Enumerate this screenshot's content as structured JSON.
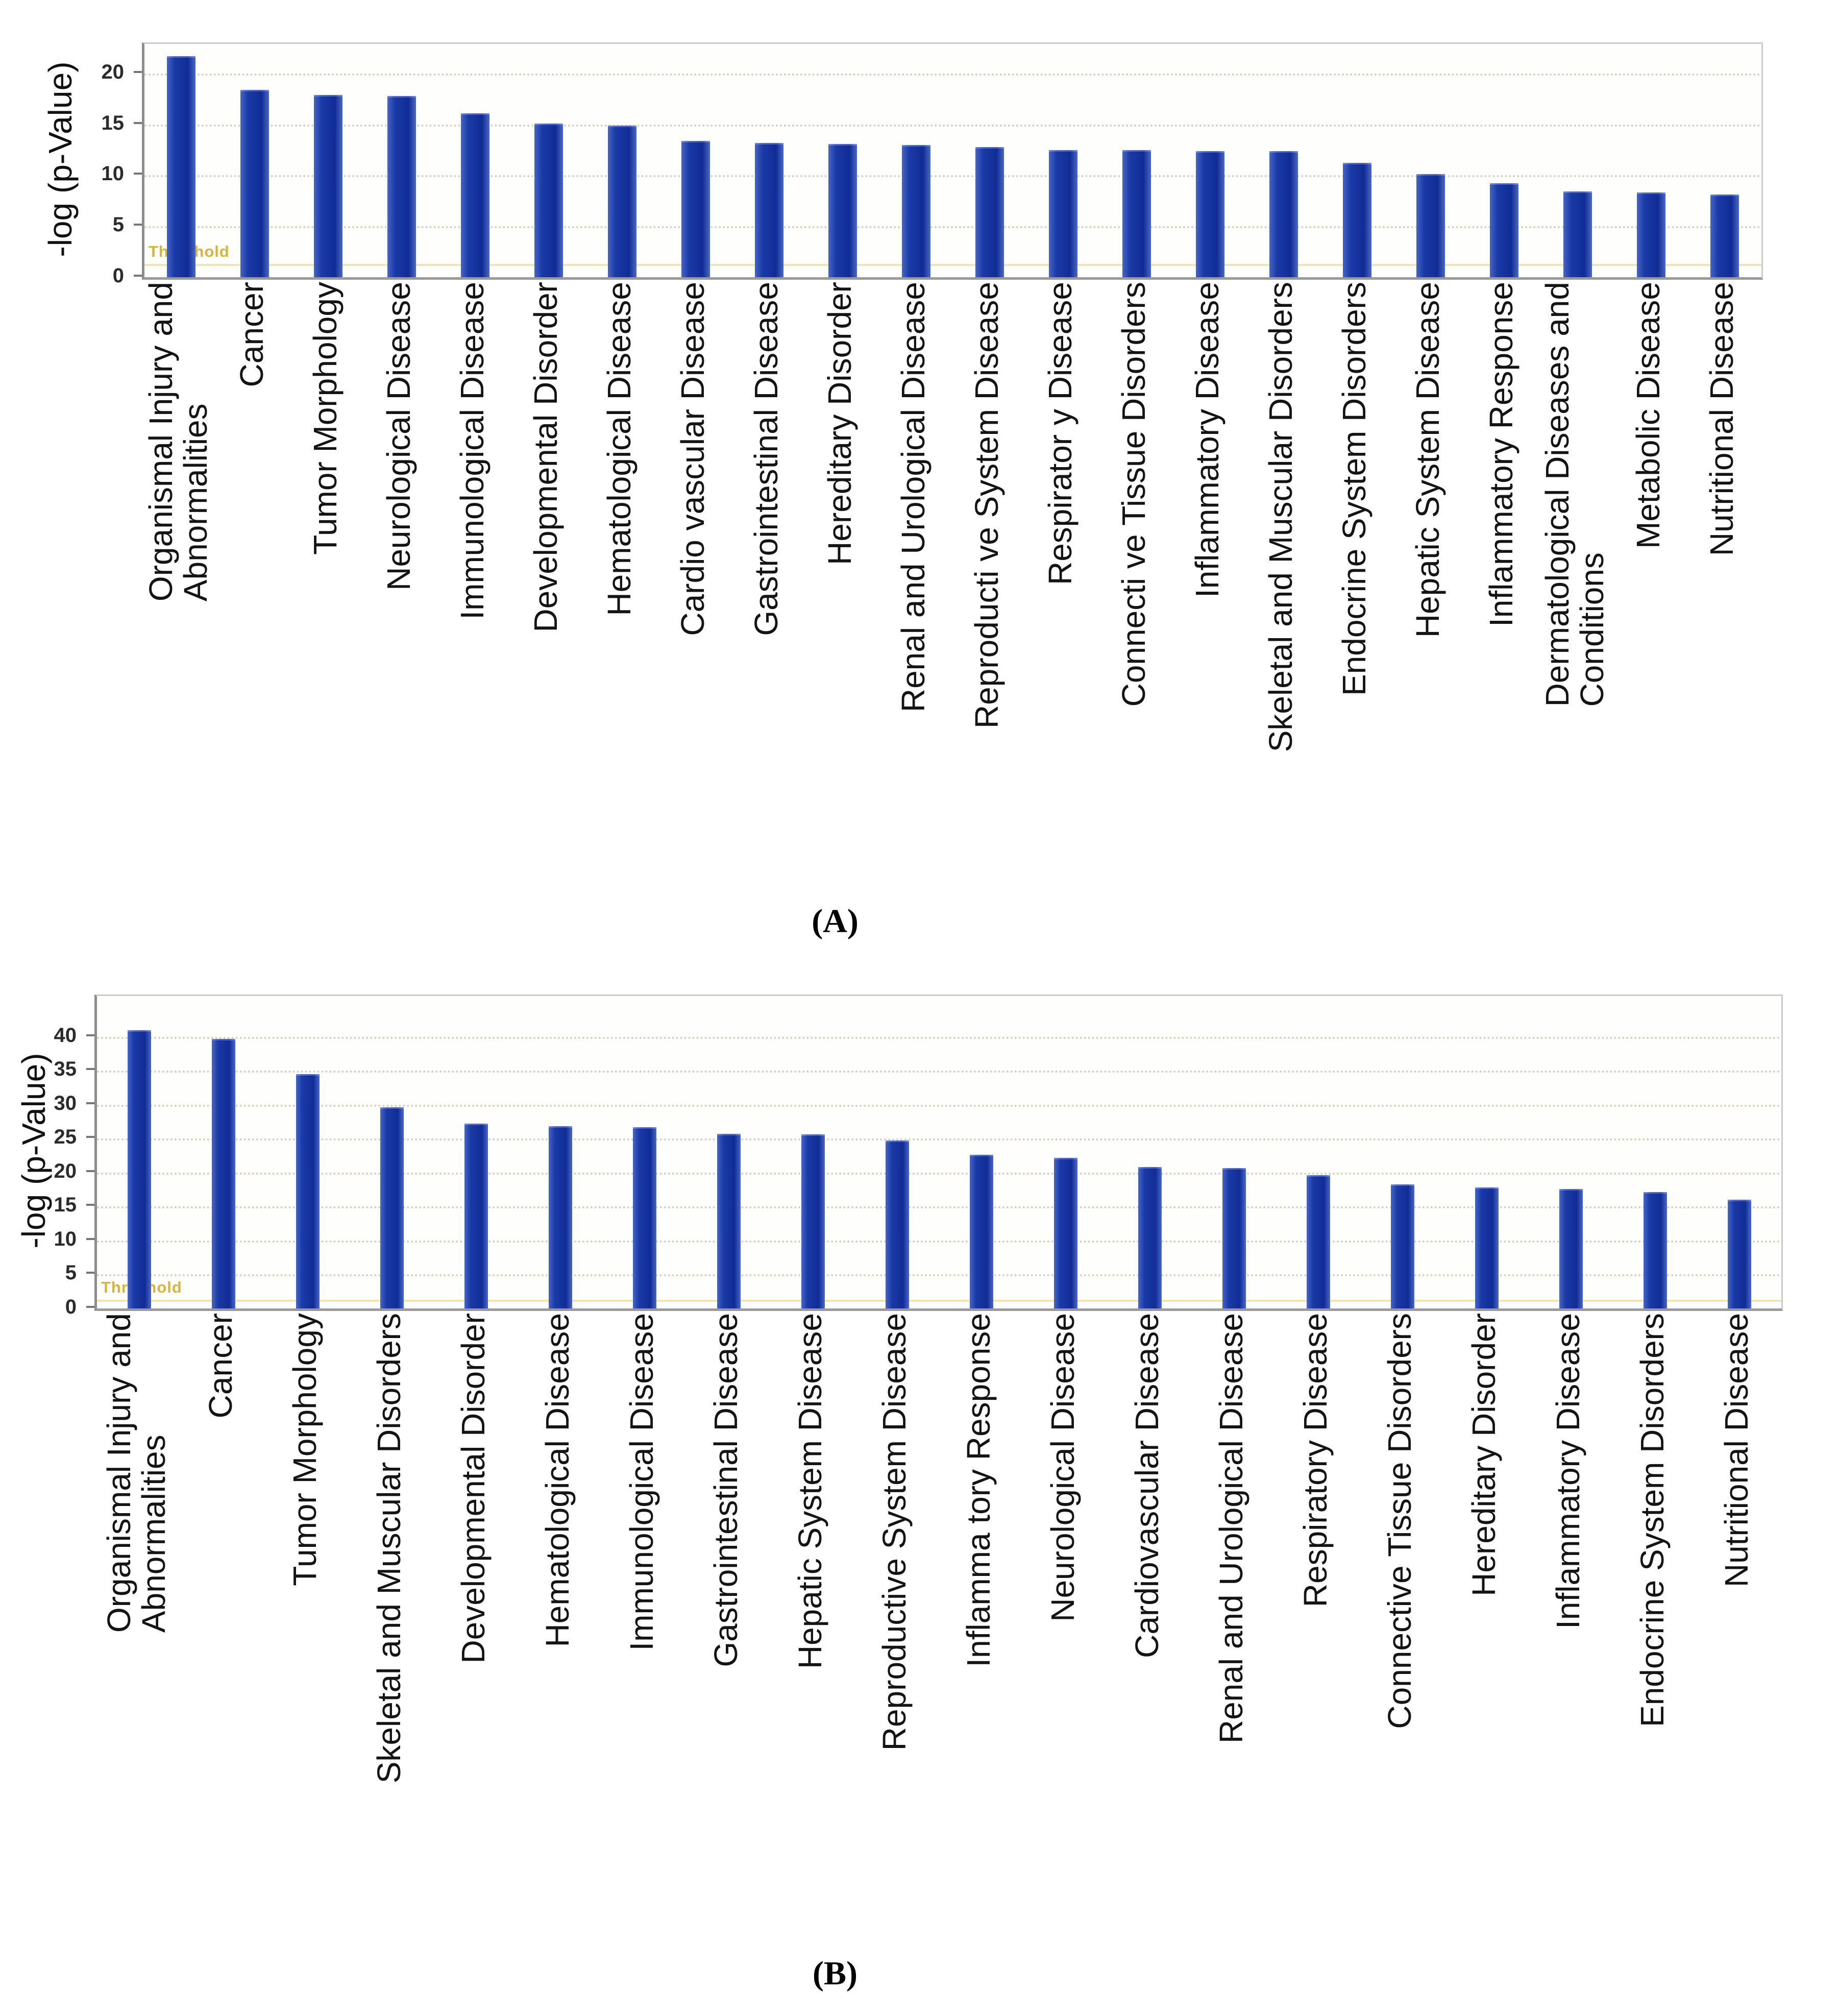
{
  "figure": {
    "description": "Two-panel bar figure of disease categories vs -log(p-Value)",
    "panel_captions": [
      "(A)",
      "(B)"
    ]
  },
  "chart_data": [
    {
      "panel": "A",
      "type": "bar",
      "title": "",
      "xlabel": "",
      "ylabel": "-log (p-Value)",
      "caption": "(A)",
      "legend": "none",
      "grid": "dotted horizontal gridlines at each y tick",
      "bar_color": "#1b3aa6",
      "threshold": {
        "label": "Threshold",
        "value": 1.3,
        "line_color": "#f2e5b0",
        "text_color": "#d9b43c"
      },
      "ylim": [
        0,
        22.9
      ],
      "yticks": [
        0,
        5,
        10,
        15,
        20
      ],
      "categories": [
        "Organismal Injury and\nAbnormalities",
        "Cancer",
        "Tumor Morphology",
        "Neurological Disease",
        "Immunological Disease",
        "Developmental Disorder",
        "Hematological Disease",
        "Cardio vascular Disease",
        "Gastrointestinal Disease",
        "Hereditary Disorder",
        "Renal and Urological Disease",
        "Reproducti ve System Disease",
        "Respirator y Disease",
        "Connecti ve Tissue Disorders",
        "Inflammatory Disease",
        "Skeletal and Muscular Disorders",
        "Endocrine System Disorders",
        "Hepatic System Disease",
        "Inflammatory Response",
        "Dermatological Diseases and\nConditions",
        "Metabolic Disease",
        "Nutritional Disease"
      ],
      "values": [
        21.7,
        18.4,
        17.9,
        17.8,
        16.1,
        15.1,
        14.9,
        13.4,
        13.2,
        13.1,
        13.0,
        12.8,
        12.5,
        12.5,
        12.4,
        12.4,
        11.2,
        10.1,
        9.2,
        8.4,
        8.3,
        8.1
      ]
    },
    {
      "panel": "B",
      "type": "bar",
      "title": "",
      "xlabel": "",
      "ylabel": "-log (p-Value)",
      "caption": "(B)",
      "legend": "none",
      "grid": "dotted horizontal gridlines at each y tick",
      "bar_color": "#1b3aa6",
      "threshold": {
        "label": "Threshold",
        "value": 1.3,
        "line_color": "#f2e5b0",
        "text_color": "#d9b43c"
      },
      "ylim": [
        0,
        46
      ],
      "yticks": [
        0,
        5,
        10,
        15,
        20,
        25,
        30,
        35,
        40
      ],
      "categories": [
        "Organismal Injury and\nAbnormalities",
        "Cancer",
        "Tumor Morphology",
        "Skeletal and Muscular Disorders",
        "Developmental Disorder",
        "Hematological Disease",
        "Immunological Disease",
        "Gastrointestinal Disease",
        "Hepatic System Disease",
        "Reproductive System Disease",
        "Inflamma tory Response",
        "Neurological Disease",
        "Cardiovascular Disease",
        "Renal and Urological Disease",
        "Respiratory Disease",
        "Connective Tissue Disorders",
        "Hereditary Disorder",
        "Inflammatory Disease",
        "Endocrine System Disorders",
        "Nutritional Disease"
      ],
      "values": [
        41.0,
        39.7,
        34.5,
        29.6,
        27.2,
        26.8,
        26.7,
        25.7,
        25.6,
        24.7,
        22.6,
        22.2,
        20.8,
        20.7,
        19.6,
        18.3,
        17.8,
        17.6,
        17.1,
        16.0
      ]
    }
  ]
}
